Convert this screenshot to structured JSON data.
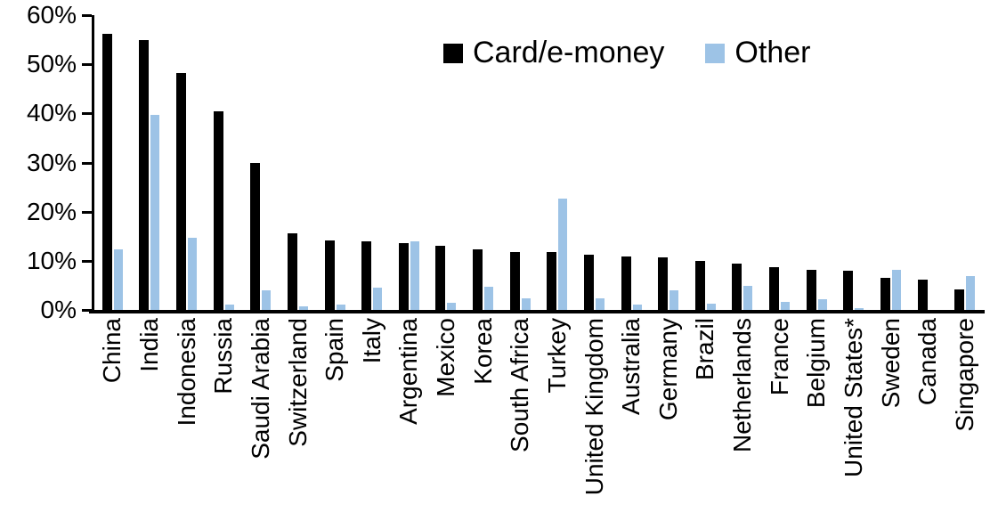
{
  "chart_data": {
    "type": "bar",
    "categories": [
      "China",
      "India",
      "Indonesia",
      "Russia",
      "Saudi Arabia",
      "Switzerland",
      "Spain",
      "Italy",
      "Argentina",
      "Mexico",
      "Korea",
      "South Africa",
      "Turkey",
      "United Kingdom",
      "Australia",
      "Germany",
      "Brazil",
      "Netherlands",
      "France",
      "Belgium",
      "United States*",
      "Sweden",
      "Canada",
      "Singapore"
    ],
    "series": [
      {
        "name": "Card/e-money",
        "color": "#000000",
        "values": [
          56.2,
          55.0,
          48.2,
          40.4,
          29.9,
          15.6,
          14.1,
          14.0,
          13.6,
          13.1,
          12.3,
          11.8,
          11.7,
          11.2,
          10.9,
          10.7,
          10.0,
          9.4,
          8.7,
          8.2,
          8.0,
          6.6,
          6.1,
          4.1
        ]
      },
      {
        "name": "Other",
        "color": "#9DC3E6",
        "values": [
          12.4,
          39.7,
          14.6,
          1.0,
          4.0,
          0.8,
          1.0,
          4.6,
          14.0,
          1.4,
          4.7,
          2.4,
          22.6,
          2.3,
          1.0,
          4.0,
          1.2,
          4.9,
          1.6,
          2.1,
          0.4,
          8.2,
          0.0,
          6.8
        ]
      }
    ],
    "xlabel": "",
    "ylabel": "",
    "ylim": [
      0,
      60
    ],
    "ytick_step": 10,
    "ytick_labels": [
      "0%",
      "10%",
      "20%",
      "30%",
      "40%",
      "50%",
      "60%"
    ],
    "grid": false,
    "legend_position": "top-center",
    "x_label_rotation_deg": 90
  }
}
